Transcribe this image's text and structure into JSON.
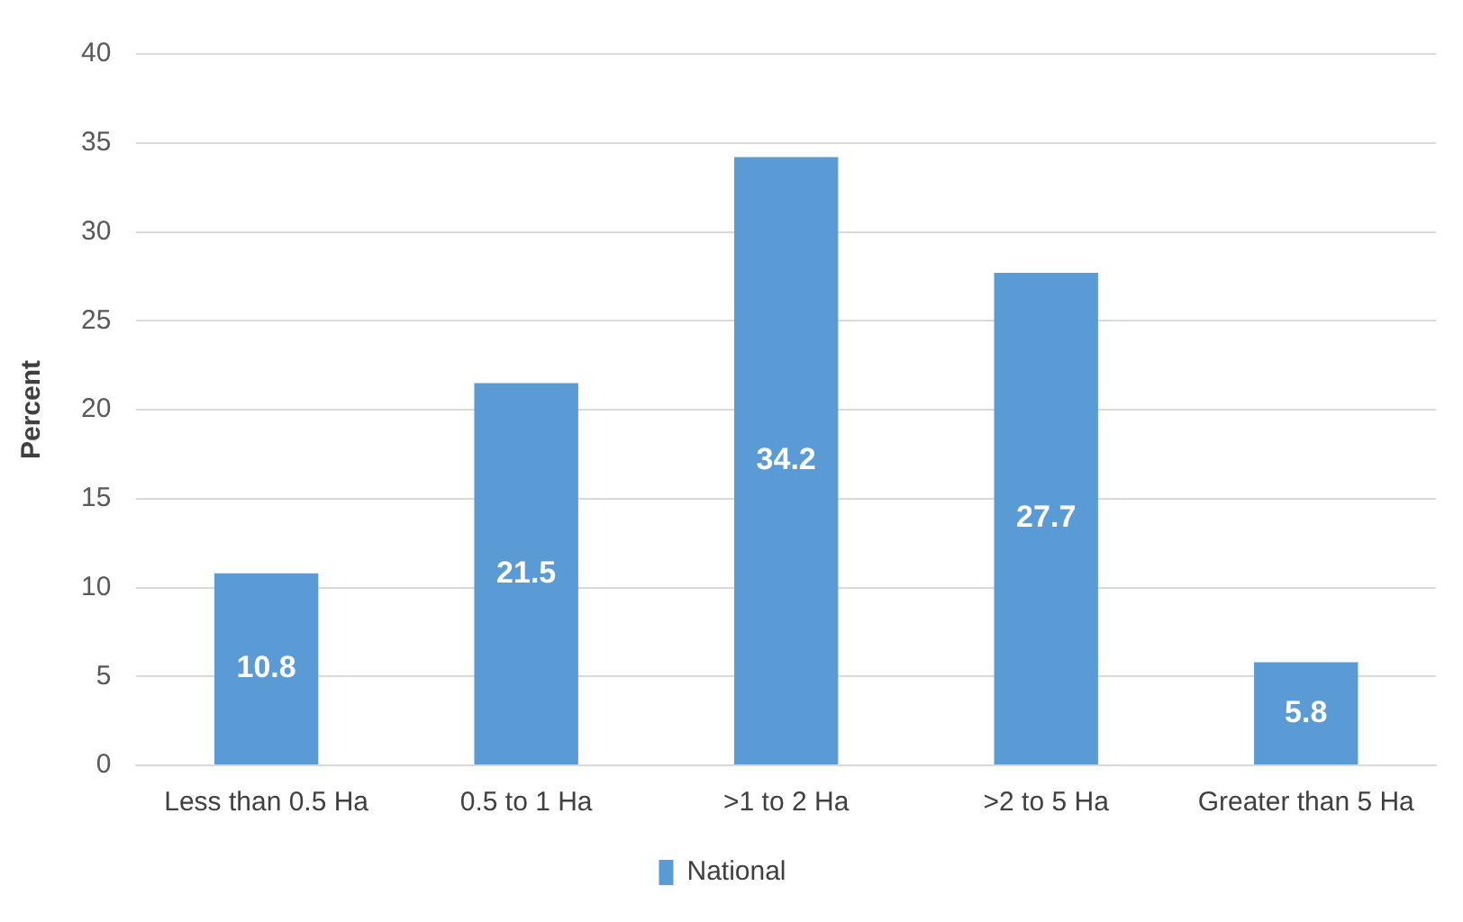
{
  "chart_data": {
    "type": "bar",
    "ylabel": "Percent",
    "categories": [
      "Less than 0.5 Ha",
      "0.5 to 1 Ha",
      ">1 to 2 Ha",
      ">2 to 5 Ha",
      "Greater than 5 Ha"
    ],
    "series": [
      {
        "name": "National",
        "color": "#5b9bd5",
        "values": [
          10.8,
          21.5,
          34.2,
          27.7,
          5.8
        ]
      }
    ],
    "ylim": [
      0,
      40
    ],
    "yticks": [
      0,
      5,
      10,
      15,
      20,
      25,
      30,
      35,
      40
    ],
    "grid": "y",
    "legend": "bottom",
    "data_labels": true
  }
}
